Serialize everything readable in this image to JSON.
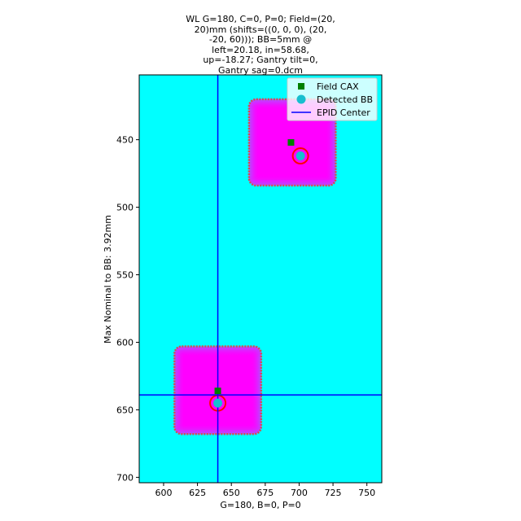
{
  "chart_data": {
    "type": "scatter",
    "title_lines": [
      "WL G=180, C=0, P=0; Field=(20,",
      "20)mm (shifts=((0, 0, 0), (20,",
      "-20, 60))); BB=5mm @",
      "left=20.18, in=58.68,",
      "up=-18.27; Gantry tilt=0,",
      "Gantry sag=0.dcm"
    ],
    "xlabel": "G=180, B=0, P=0",
    "ylabel": "Max Nominal to BB: 3.92mm",
    "xlim": [
      582,
      761
    ],
    "ylim": [
      704,
      402
    ],
    "y_inverted": true,
    "x_ticks": [
      600,
      625,
      650,
      675,
      700,
      725,
      750
    ],
    "y_ticks": [
      450,
      500,
      550,
      600,
      650,
      700
    ],
    "grid": false,
    "legend_position": "upper-right",
    "background_color": "#00ffff",
    "fields": [
      {
        "x0": 608,
        "x1": 672,
        "y0": 603,
        "y1": 668
      },
      {
        "x0": 663,
        "x1": 727,
        "y0": 420,
        "y1": 484
      }
    ],
    "field_color": "#ff00ff",
    "field_edge_color": "#d05050",
    "series": [
      {
        "name": "Field CAX",
        "marker": "square",
        "color": "#008000",
        "points": [
          [
            640,
            636
          ],
          [
            694,
            452
          ]
        ]
      },
      {
        "name": "Detected BB",
        "marker": "circle",
        "color": "#17becf",
        "points": [
          [
            640,
            645
          ],
          [
            701,
            462
          ]
        ]
      },
      {
        "name": "EPID Center",
        "marker": "line",
        "color": "#0000ff",
        "x": 640,
        "y": 639
      }
    ],
    "bb_outline_color": "#ff0000",
    "bb_outline_radius": 9.5
  }
}
